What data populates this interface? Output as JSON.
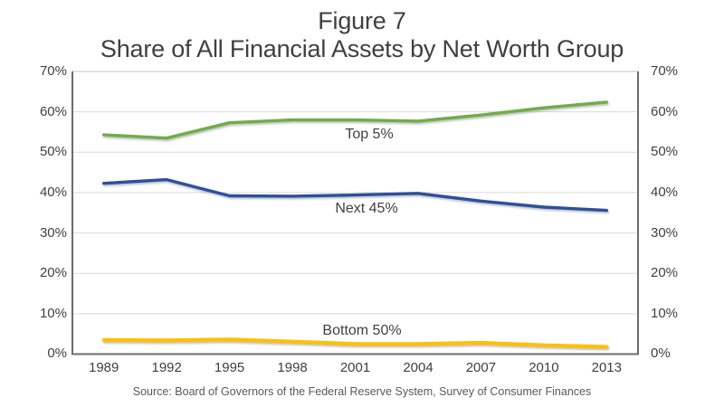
{
  "chart_data": {
    "type": "line",
    "title": "Figure 7",
    "subtitle": "Share of All Financial Assets by Net Worth Group",
    "categories": [
      "1989",
      "1992",
      "1995",
      "1998",
      "2001",
      "2004",
      "2007",
      "2010",
      "2013"
    ],
    "series": [
      {
        "name": "Top 5%",
        "color": "#70AD47",
        "stroke_width": 3.4,
        "values": [
          54.3,
          53.5,
          57.3,
          58.0,
          58.0,
          57.7,
          59.2,
          61.0,
          62.4
        ]
      },
      {
        "name": "Next 45%",
        "color": "#2B519E",
        "stroke_width": 3.4,
        "values": [
          42.3,
          43.2,
          39.2,
          39.1,
          39.4,
          39.8,
          37.9,
          36.4,
          35.6
        ]
      },
      {
        "name": "Bottom 50%",
        "color": "#FFC000",
        "stroke_width": 4.2,
        "values": [
          3.5,
          3.4,
          3.6,
          3.1,
          2.5,
          2.5,
          2.8,
          2.2,
          1.8
        ]
      }
    ],
    "ylim": [
      0,
      70
    ],
    "y_ticks": [
      "0%",
      "10%",
      "20%",
      "30%",
      "40%",
      "50%",
      "60%",
      "70%"
    ],
    "grid": true,
    "legend": "inline-labels",
    "gridline_color": "#D9D9D9",
    "axis_color": "#6B6B6B",
    "source": "Source: Board of Governors of the Federal Reserve System, Survey of Consumer Finances"
  }
}
